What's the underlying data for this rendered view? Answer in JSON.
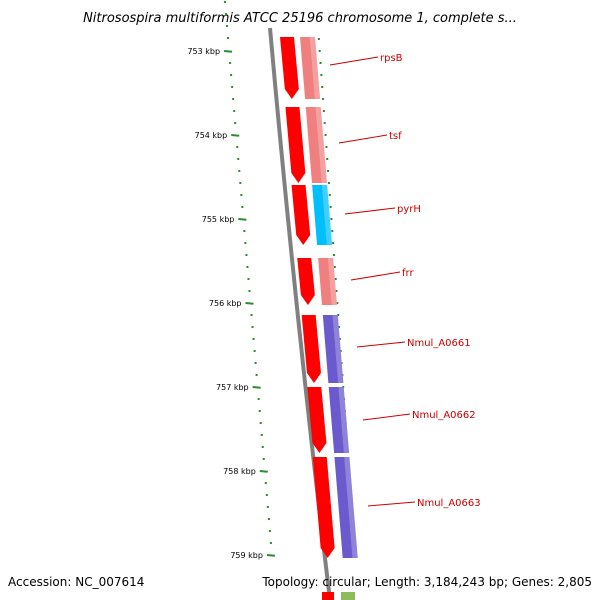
{
  "title": "Nitrosospira multiformis ATCC 25196 chromosome 1, complete s...",
  "accession_text": "Accession: NC_007614",
  "summary_text": "Topology: circular; Length: 3,184,243 bp; Genes: 2,805",
  "colors": {
    "backbone": "#808080",
    "tick": "#2e8b2e",
    "cds_feature": "#ff0000",
    "gene_pink": "#f08080",
    "gene_cyan": "#00bfff",
    "gene_purple": "#6a5acd",
    "label_red": "#cc0000",
    "bottom_olive": "#8fbc5a"
  },
  "ruler": {
    "unit": "kbp",
    "labels": [
      "753 kbp",
      "754 kbp",
      "755 kbp",
      "756 kbp",
      "757 kbp",
      "758 kbp",
      "759 kbp"
    ]
  },
  "genes": [
    {
      "name": "rpsB",
      "color": "pink"
    },
    {
      "name": "tsf",
      "color": "pink"
    },
    {
      "name": "pyrH",
      "color": "cyan"
    },
    {
      "name": "frr",
      "color": "pink"
    },
    {
      "name": "Nmul_A0661",
      "color": "purple"
    },
    {
      "name": "Nmul_A0662",
      "color": "purple"
    },
    {
      "name": "Nmul_A0663",
      "color": "purple"
    }
  ]
}
